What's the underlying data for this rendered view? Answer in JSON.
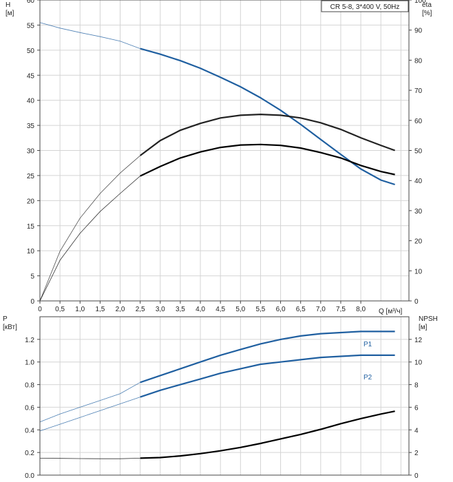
{
  "chart_data": [
    {
      "id": "head_efficiency",
      "type": "line",
      "title": "CR 5-8, 3*400 V, 50Hz",
      "xlabel": "Q [м³/ч]",
      "ylabel_left": "H\n[м]",
      "ylabel_right": "eta\n[%]",
      "xlim": [
        0,
        9.2
      ],
      "ylim_left": [
        0,
        60
      ],
      "ylim_right": [
        0,
        100
      ],
      "x_ticks": [
        "0",
        "0,5",
        "1,0",
        "1,5",
        "2,0",
        "2,5",
        "3,0",
        "3,5",
        "4,0",
        "4,5",
        "5,0",
        "5,5",
        "6,0",
        "6,5",
        "7,0",
        "7,5",
        "8,0"
      ],
      "y_ticks_left": [
        "0",
        "5",
        "10",
        "15",
        "20",
        "25",
        "30",
        "35",
        "40",
        "45",
        "50",
        "55",
        "60"
      ],
      "y_ticks_right": [
        "0",
        "10",
        "20",
        "30",
        "40",
        "50",
        "60",
        "70",
        "80",
        "90",
        "100"
      ],
      "grid": true,
      "series": [
        {
          "axis": "left",
          "color": "#1f5fa0",
          "x": [
            0,
            0.5,
            1,
            1.5,
            2,
            2.5,
            3,
            3.5,
            4,
            4.5,
            5,
            5.5,
            6,
            6.5,
            7,
            7.5,
            8,
            8.5,
            8.85
          ],
          "y": [
            55.5,
            54.4,
            53.5,
            52.7,
            51.8,
            50.3,
            49.2,
            47.9,
            46.4,
            44.6,
            42.7,
            40.5,
            38,
            35.2,
            32.2,
            29.2,
            26.3,
            24.1,
            23.2
          ]
        },
        {
          "axis": "right",
          "color": "#222222",
          "x": [
            0,
            0.5,
            1,
            1.5,
            2,
            2.5,
            3,
            3.5,
            4,
            4.5,
            5,
            5.5,
            6,
            6.5,
            7,
            7.5,
            8,
            8.5,
            8.85
          ],
          "y": [
            0,
            16.5,
            27.5,
            35.7,
            42.5,
            48.3,
            53.3,
            56.7,
            59,
            60.8,
            61.7,
            62,
            61.7,
            60.8,
            59.2,
            57,
            54.2,
            51.7,
            50
          ]
        },
        {
          "axis": "right",
          "color": "#000000",
          "x": [
            0,
            0.5,
            1,
            1.5,
            2,
            2.5,
            3,
            3.5,
            4,
            4.5,
            5,
            5.5,
            6,
            6.5,
            7,
            7.5,
            8,
            8.5,
            8.85
          ],
          "y": [
            0,
            13.5,
            22.5,
            29.7,
            35.7,
            41.5,
            44.7,
            47.5,
            49.5,
            51,
            51.8,
            52,
            51.7,
            50.8,
            49.3,
            47.5,
            45,
            43,
            42
          ]
        }
      ]
    },
    {
      "id": "power_npsh",
      "type": "line",
      "xlabel": "",
      "ylabel_left": "P\n[кВт]",
      "ylabel_right": "NPSH\n[м]",
      "xlim": [
        0,
        9.2
      ],
      "ylim_left": [
        0,
        1.4
      ],
      "ylim_right": [
        0,
        14
      ],
      "y_ticks_left": [
        "0.0",
        "0.2",
        "0.4",
        "0.6",
        "0.8",
        "1.0",
        "1.2"
      ],
      "y_ticks_right": [
        "0",
        "2",
        "4",
        "6",
        "8",
        "10",
        "12"
      ],
      "grid": true,
      "series": [
        {
          "name": "P1",
          "axis": "left",
          "color": "#1f5fa0",
          "x": [
            0,
            0.5,
            1,
            1.5,
            2,
            2.5,
            3,
            3.5,
            4,
            4.5,
            5,
            5.5,
            6,
            6.5,
            7,
            7.5,
            8,
            8.5,
            8.85
          ],
          "y": [
            0.47,
            0.54,
            0.6,
            0.66,
            0.72,
            0.82,
            0.88,
            0.94,
            1.0,
            1.06,
            1.11,
            1.16,
            1.2,
            1.23,
            1.25,
            1.26,
            1.27,
            1.27,
            1.27
          ]
        },
        {
          "name": "P2",
          "axis": "left",
          "color": "#1f5fa0",
          "x": [
            0,
            0.5,
            1,
            1.5,
            2,
            2.5,
            3,
            3.5,
            4,
            4.5,
            5,
            5.5,
            6,
            6.5,
            7,
            7.5,
            8,
            8.5,
            8.85
          ],
          "y": [
            0.39,
            0.45,
            0.51,
            0.57,
            0.63,
            0.69,
            0.75,
            0.8,
            0.85,
            0.9,
            0.94,
            0.98,
            1.0,
            1.02,
            1.04,
            1.05,
            1.06,
            1.06,
            1.06
          ]
        },
        {
          "axis": "right",
          "color": "#000000",
          "x": [
            0,
            0.5,
            1,
            1.5,
            2,
            2.5,
            3,
            3.5,
            4,
            4.5,
            5,
            5.5,
            6,
            6.5,
            7,
            7.5,
            8,
            8.5,
            8.85
          ],
          "y": [
            1.5,
            1.48,
            1.46,
            1.45,
            1.45,
            1.5,
            1.55,
            1.7,
            1.9,
            2.15,
            2.45,
            2.8,
            3.2,
            3.6,
            4.05,
            4.55,
            5.0,
            5.4,
            5.65
          ]
        }
      ]
    }
  ]
}
